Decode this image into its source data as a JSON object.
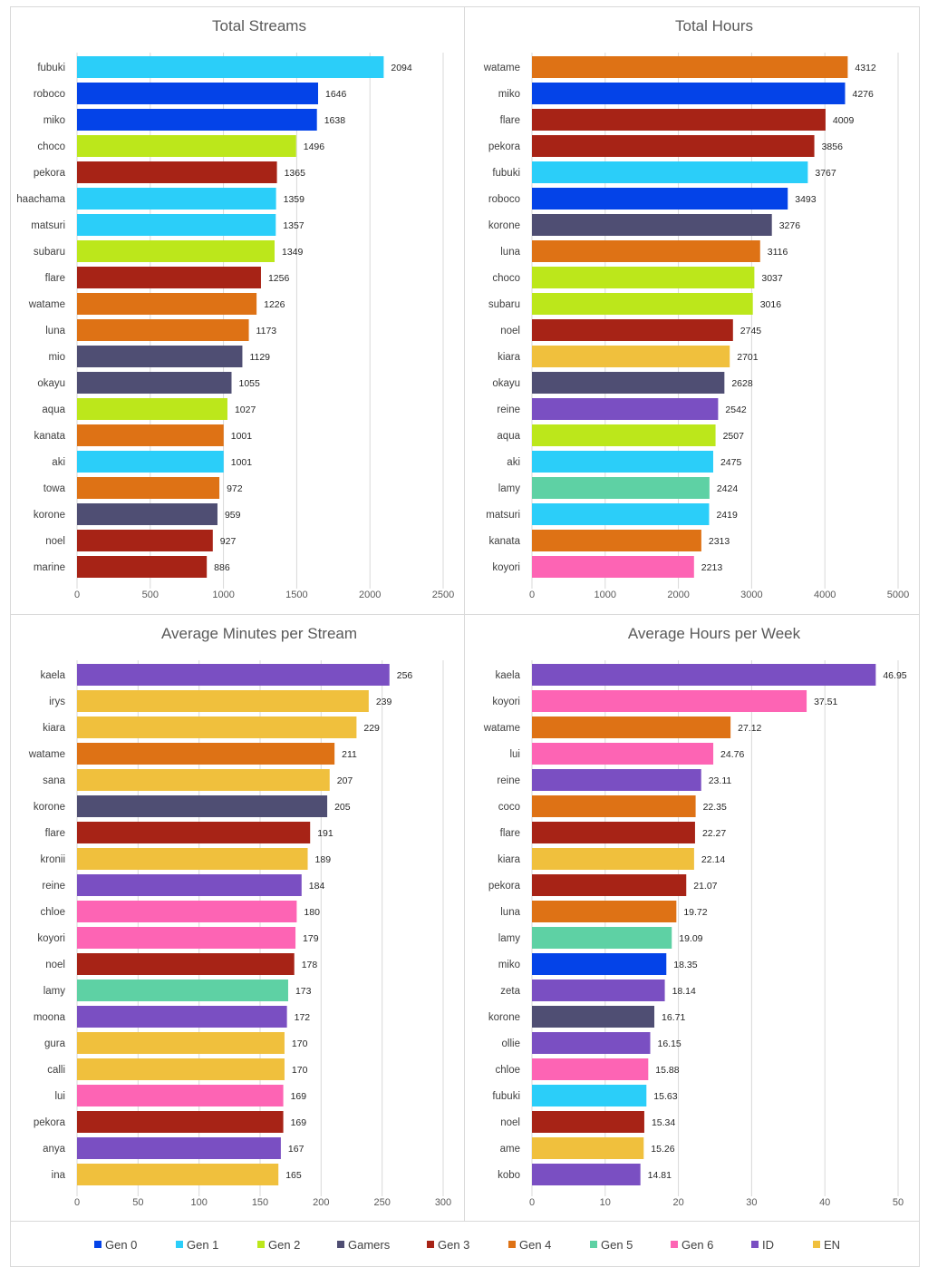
{
  "colors": {
    "Gen 0": "#0443e8",
    "Gen 1": "#2bcef9",
    "Gen 2": "#bce71b",
    "Gamers": "#4f4e73",
    "Gen 3": "#a72316",
    "Gen 4": "#de7215",
    "Gen 5": "#5ed1a4",
    "Gen 6": "#fd64b4",
    "ID": "#7a4fc2",
    "EN": "#f0c03d"
  },
  "legend": [
    "Gen 0",
    "Gen 1",
    "Gen 2",
    "Gamers",
    "Gen 3",
    "Gen 4",
    "Gen 5",
    "Gen 6",
    "ID",
    "EN"
  ],
  "chart_data": [
    {
      "type": "bar",
      "orientation": "horizontal",
      "title": "Total Streams",
      "xlim": [
        0,
        2500
      ],
      "ticks": [
        0,
        500,
        1000,
        1500,
        2000,
        2500
      ],
      "categories": [
        "fubuki",
        "roboco",
        "miko",
        "choco",
        "pekora",
        "haachama",
        "matsuri",
        "subaru",
        "flare",
        "watame",
        "luna",
        "mio",
        "okayu",
        "aqua",
        "kanata",
        "aki",
        "towa",
        "korone",
        "noel",
        "marine"
      ],
      "values": [
        2094,
        1646,
        1638,
        1496,
        1365,
        1359,
        1357,
        1349,
        1256,
        1226,
        1173,
        1129,
        1055,
        1027,
        1001,
        1001,
        972,
        959,
        927,
        886
      ],
      "groups": [
        "Gen 1",
        "Gen 0",
        "Gen 0",
        "Gen 2",
        "Gen 3",
        "Gen 1",
        "Gen 1",
        "Gen 2",
        "Gen 3",
        "Gen 4",
        "Gen 4",
        "Gamers",
        "Gamers",
        "Gen 2",
        "Gen 4",
        "Gen 1",
        "Gen 4",
        "Gamers",
        "Gen 3",
        "Gen 3"
      ],
      "value_labels": [
        "2094",
        "1646",
        "1638",
        "1496",
        "1365",
        "1359",
        "1357",
        "1349",
        "1256",
        "1226",
        "1173",
        "1129",
        "1055",
        "1027",
        "1001",
        "1001",
        "972",
        "959",
        "927",
        "886"
      ]
    },
    {
      "type": "bar",
      "orientation": "horizontal",
      "title": "Total Hours",
      "xlim": [
        0,
        5000
      ],
      "ticks": [
        0,
        1000,
        2000,
        3000,
        4000,
        5000
      ],
      "categories": [
        "watame",
        "miko",
        "flare",
        "pekora",
        "fubuki",
        "roboco",
        "korone",
        "luna",
        "choco",
        "subaru",
        "noel",
        "kiara",
        "okayu",
        "reine",
        "aqua",
        "aki",
        "lamy",
        "matsuri",
        "kanata",
        "koyori"
      ],
      "values": [
        4312,
        4276,
        4009,
        3856,
        3767,
        3493,
        3276,
        3116,
        3037,
        3016,
        2745,
        2701,
        2628,
        2542,
        2507,
        2475,
        2424,
        2419,
        2313,
        2213
      ],
      "groups": [
        "Gen 4",
        "Gen 0",
        "Gen 3",
        "Gen 3",
        "Gen 1",
        "Gen 0",
        "Gamers",
        "Gen 4",
        "Gen 2",
        "Gen 2",
        "Gen 3",
        "EN",
        "Gamers",
        "ID",
        "Gen 2",
        "Gen 1",
        "Gen 5",
        "Gen 1",
        "Gen 4",
        "Gen 6"
      ],
      "value_labels": [
        "4312",
        "4276",
        "4009",
        "3856",
        "3767",
        "3493",
        "3276",
        "3116",
        "3037",
        "3016",
        "2745",
        "2701",
        "2628",
        "2542",
        "2507",
        "2475",
        "2424",
        "2419",
        "2313",
        "2213"
      ]
    },
    {
      "type": "bar",
      "orientation": "horizontal",
      "title": "Average Minutes per Stream",
      "xlim": [
        0,
        300
      ],
      "ticks": [
        0,
        50,
        100,
        150,
        200,
        250,
        300
      ],
      "categories": [
        "kaela",
        "irys",
        "kiara",
        "watame",
        "sana",
        "korone",
        "flare",
        "kronii",
        "reine",
        "chloe",
        "koyori",
        "noel",
        "lamy",
        "moona",
        "gura",
        "calli",
        "lui",
        "pekora",
        "anya",
        "ina"
      ],
      "values": [
        256,
        239,
        229,
        211,
        207,
        205,
        191,
        189,
        184,
        180,
        179,
        178,
        173,
        172,
        170,
        170,
        169,
        169,
        167,
        165
      ],
      "groups": [
        "ID",
        "EN",
        "EN",
        "Gen 4",
        "EN",
        "Gamers",
        "Gen 3",
        "EN",
        "ID",
        "Gen 6",
        "Gen 6",
        "Gen 3",
        "Gen 5",
        "ID",
        "EN",
        "EN",
        "Gen 6",
        "Gen 3",
        "ID",
        "EN"
      ],
      "value_labels": [
        "256",
        "239",
        "229",
        "211",
        "207",
        "205",
        "191",
        "189",
        "184",
        "180",
        "179",
        "178",
        "173",
        "172",
        "170",
        "170",
        "169",
        "169",
        "167",
        "165"
      ]
    },
    {
      "type": "bar",
      "orientation": "horizontal",
      "title": "Average Hours per Week",
      "xlim": [
        0,
        50
      ],
      "ticks": [
        0,
        10,
        20,
        30,
        40,
        50
      ],
      "categories": [
        "kaela",
        "koyori",
        "watame",
        "lui",
        "reine",
        "coco",
        "flare",
        "kiara",
        "pekora",
        "luna",
        "lamy",
        "miko",
        "zeta",
        "korone",
        "ollie",
        "chloe",
        "fubuki",
        "noel",
        "ame",
        "kobo"
      ],
      "values": [
        46.95,
        37.51,
        27.12,
        24.76,
        23.11,
        22.35,
        22.27,
        22.14,
        21.07,
        19.72,
        19.09,
        18.35,
        18.14,
        16.71,
        16.15,
        15.88,
        15.63,
        15.34,
        15.26,
        14.81
      ],
      "groups": [
        "ID",
        "Gen 6",
        "Gen 4",
        "Gen 6",
        "ID",
        "Gen 4",
        "Gen 3",
        "EN",
        "Gen 3",
        "Gen 4",
        "Gen 5",
        "Gen 0",
        "ID",
        "Gamers",
        "ID",
        "Gen 6",
        "Gen 1",
        "Gen 3",
        "EN",
        "ID"
      ],
      "value_labels": [
        "46.95",
        "37.51",
        "27.12",
        "24.76",
        "23.11",
        "22.35",
        "22.27",
        "22.14",
        "21.07",
        "19.72",
        "19.09",
        "18.35",
        "18.14",
        "16.71",
        "16.15",
        "15.88",
        "15.63",
        "15.34",
        "15.26",
        "14.81"
      ]
    }
  ]
}
